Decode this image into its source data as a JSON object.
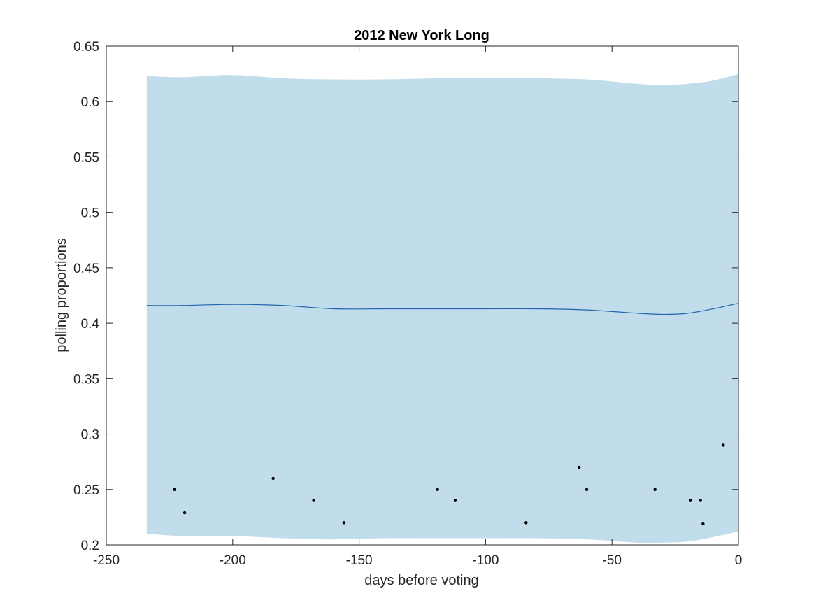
{
  "chart_data": {
    "type": "line",
    "title": "2012 New York Long",
    "xlabel": "days before voting",
    "ylabel": "polling proportions",
    "xlim": [
      -250,
      0
    ],
    "ylim": [
      0.2,
      0.65
    ],
    "xticks": [
      -250,
      -200,
      -150,
      -100,
      -50,
      0
    ],
    "xtick_labels": [
      "-250",
      "-200",
      "-150",
      "-100",
      "-50",
      "0"
    ],
    "yticks": [
      0.2,
      0.25,
      0.3,
      0.35,
      0.4,
      0.45,
      0.5,
      0.55,
      0.6,
      0.65
    ],
    "ytick_labels": [
      "0.2",
      "0.25",
      "0.3",
      "0.35",
      "0.4",
      "0.45",
      "0.5",
      "0.55",
      "0.6",
      "0.65"
    ],
    "grid": false,
    "band": {
      "x": [
        -234,
        -220,
        -200,
        -180,
        -160,
        -140,
        -120,
        -100,
        -80,
        -60,
        -40,
        -30,
        -20,
        -10,
        0
      ],
      "upper": [
        0.623,
        0.622,
        0.624,
        0.621,
        0.62,
        0.62,
        0.621,
        0.621,
        0.621,
        0.62,
        0.616,
        0.615,
        0.616,
        0.619,
        0.625
      ],
      "lower": [
        0.21,
        0.208,
        0.208,
        0.206,
        0.205,
        0.206,
        0.206,
        0.206,
        0.206,
        0.205,
        0.202,
        0.202,
        0.203,
        0.207,
        0.212
      ],
      "color": "#c1dcea"
    },
    "series": [
      {
        "x": [
          -234,
          -220,
          -200,
          -180,
          -160,
          -140,
          -120,
          -100,
          -80,
          -60,
          -40,
          -30,
          -20,
          -10,
          0
        ],
        "values": [
          0.416,
          0.416,
          0.417,
          0.416,
          0.413,
          0.413,
          0.413,
          0.413,
          0.413,
          0.412,
          0.409,
          0.408,
          0.409,
          0.413,
          0.418
        ],
        "color": "#2166ac"
      }
    ],
    "points": {
      "x": [
        -223,
        -219,
        -184,
        -168,
        -156,
        -119,
        -112,
        -84,
        -63,
        -60,
        -33,
        -19,
        -15,
        -14,
        -6
      ],
      "y": [
        0.25,
        0.229,
        0.26,
        0.24,
        0.22,
        0.25,
        0.24,
        0.22,
        0.27,
        0.25,
        0.25,
        0.24,
        0.24,
        0.219,
        0.29
      ],
      "color": "#000000"
    }
  }
}
